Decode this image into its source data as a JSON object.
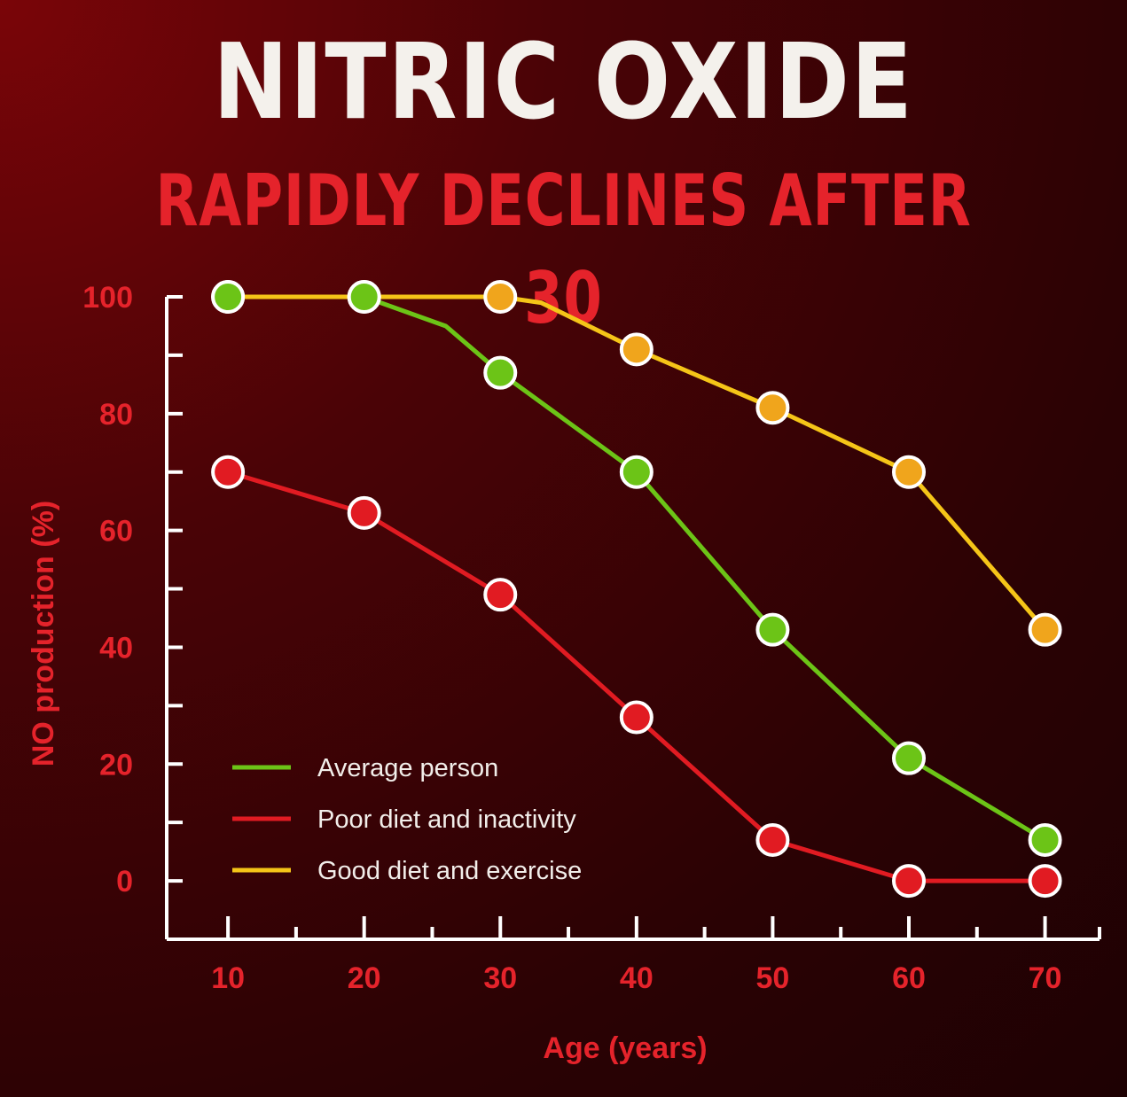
{
  "title": "NITRIC OXIDE",
  "subtitle": "RAPIDLY DECLINES AFTER 30",
  "chart_data": {
    "type": "line",
    "xlabel": "Age (years)",
    "ylabel": "NO production (%)",
    "x": [
      10,
      20,
      30,
      40,
      50,
      60,
      70
    ],
    "xticks": [
      10,
      20,
      30,
      40,
      50,
      60,
      70
    ],
    "yticks": [
      0,
      20,
      40,
      60,
      80,
      100
    ],
    "xlim": [
      5.5,
      74
    ],
    "ylim": [
      -10,
      100
    ],
    "grid": false,
    "legend_position": "bottom-left",
    "series": [
      {
        "name": "Average person",
        "color": "#6cc417",
        "marker_color": "#6cc417",
        "values": [
          100,
          100,
          87,
          70,
          43,
          21,
          7
        ],
        "line_path": [
          [
            10,
            100
          ],
          [
            20,
            100
          ],
          [
            26,
            95
          ],
          [
            30,
            87
          ],
          [
            40,
            70
          ],
          [
            50,
            43
          ],
          [
            60,
            21
          ],
          [
            70,
            7
          ]
        ]
      },
      {
        "name": "Poor diet and inactivity",
        "color": "#e11b22",
        "marker_color": "#e11b22",
        "values": [
          70,
          63,
          49,
          28,
          7,
          0,
          0
        ],
        "line_path": [
          [
            10,
            70
          ],
          [
            20,
            63
          ],
          [
            30,
            49
          ],
          [
            40,
            28
          ],
          [
            50,
            7
          ],
          [
            60,
            0
          ],
          [
            70,
            0
          ]
        ]
      },
      {
        "name": "Good diet and exercise",
        "color": "#f5c518",
        "marker_color": "#f0a51c",
        "values": [
          100,
          100,
          100,
          91,
          81,
          70,
          43
        ],
        "line_path": [
          [
            10,
            100
          ],
          [
            20,
            100
          ],
          [
            30,
            100
          ],
          [
            33,
            99
          ],
          [
            40,
            91
          ],
          [
            50,
            81
          ],
          [
            60,
            70
          ],
          [
            70,
            43
          ]
        ]
      }
    ]
  }
}
